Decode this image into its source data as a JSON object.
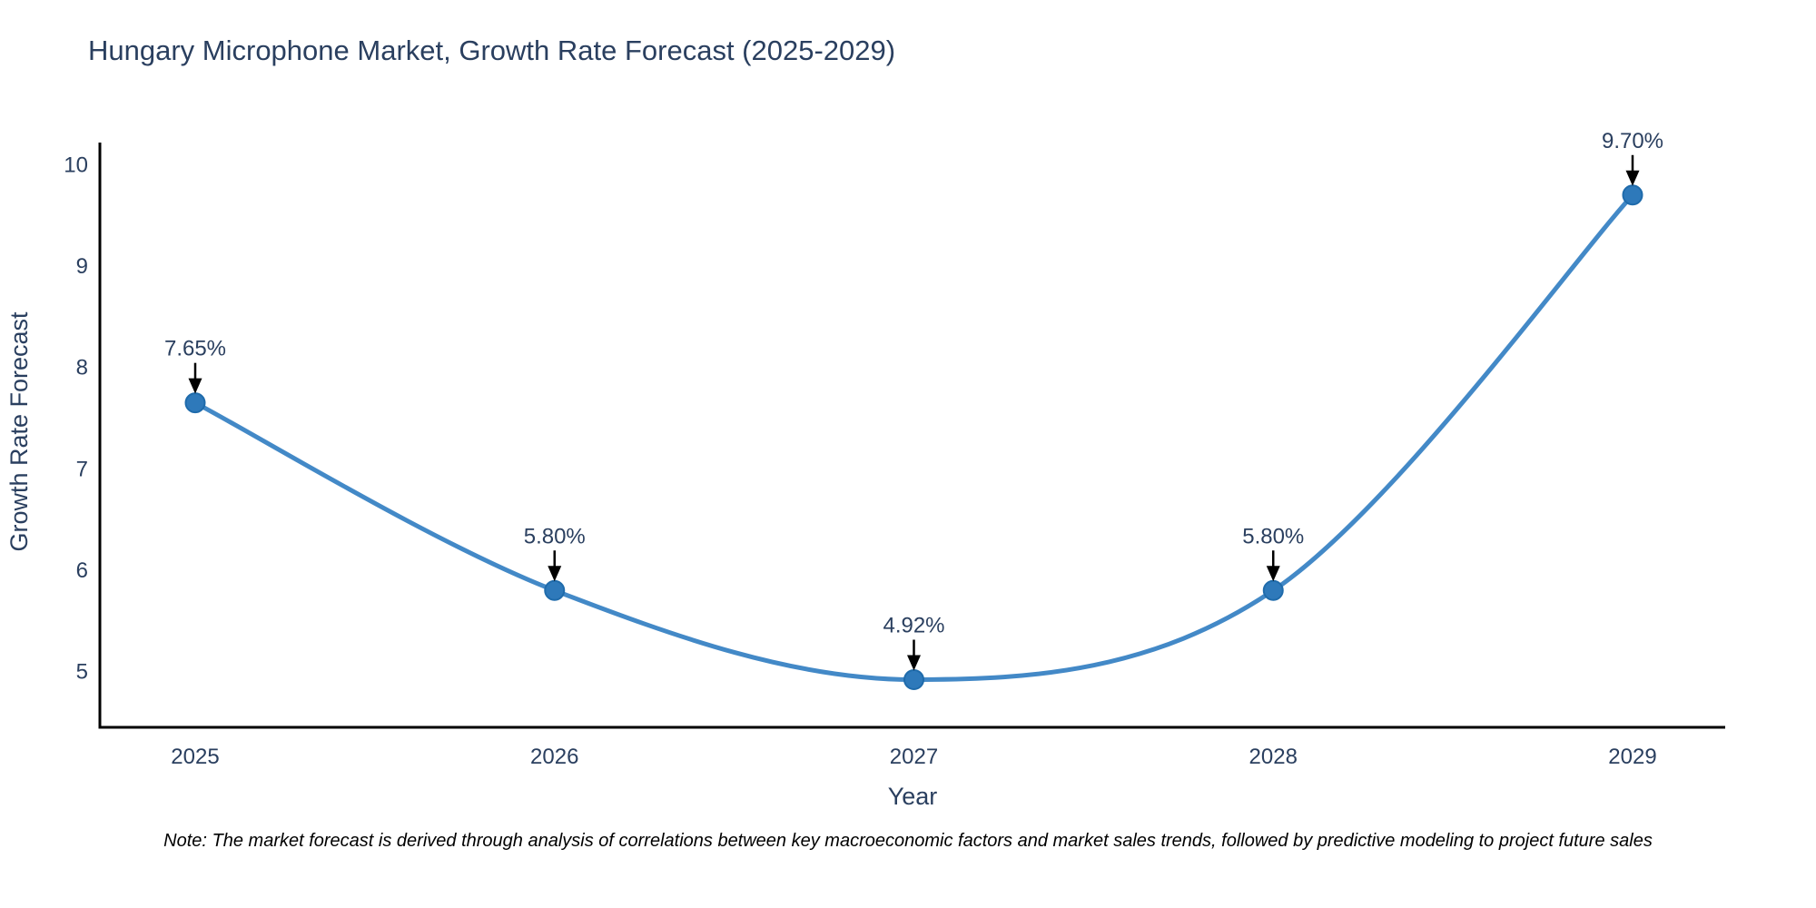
{
  "chart_data": {
    "type": "line",
    "title": "Hungary Microphone Market, Growth Rate Forecast (2025-2029)",
    "xlabel": "Year",
    "ylabel": "Growth Rate Forecast",
    "categories": [
      "2025",
      "2026",
      "2027",
      "2028",
      "2029"
    ],
    "values": [
      7.65,
      5.8,
      4.92,
      5.8,
      9.7
    ],
    "point_labels": [
      "7.65%",
      "5.80%",
      "4.92%",
      "5.80%",
      "9.70%"
    ],
    "yticks": [
      5,
      6,
      7,
      8,
      9,
      10
    ],
    "ylim": [
      4.45,
      10.28
    ],
    "line_shape": "spline",
    "grid": false,
    "legend_position": "none",
    "note": "Note: The market forecast is derived through analysis of correlations between key macroeconomic factors and market sales trends, followed by predictive modeling to project future sales",
    "colors": {
      "line": "#4389c7",
      "marker": "#2e79ba",
      "marker_edge": "#1f6bab",
      "axis_line": "#000000",
      "tick_text": "#2a3f5f",
      "title_text": "#2a3f5f",
      "annotation_text": "#2a3f5f",
      "annotation_arrow": "#000000",
      "note_text": "#000000",
      "background": "#ffffff"
    }
  }
}
